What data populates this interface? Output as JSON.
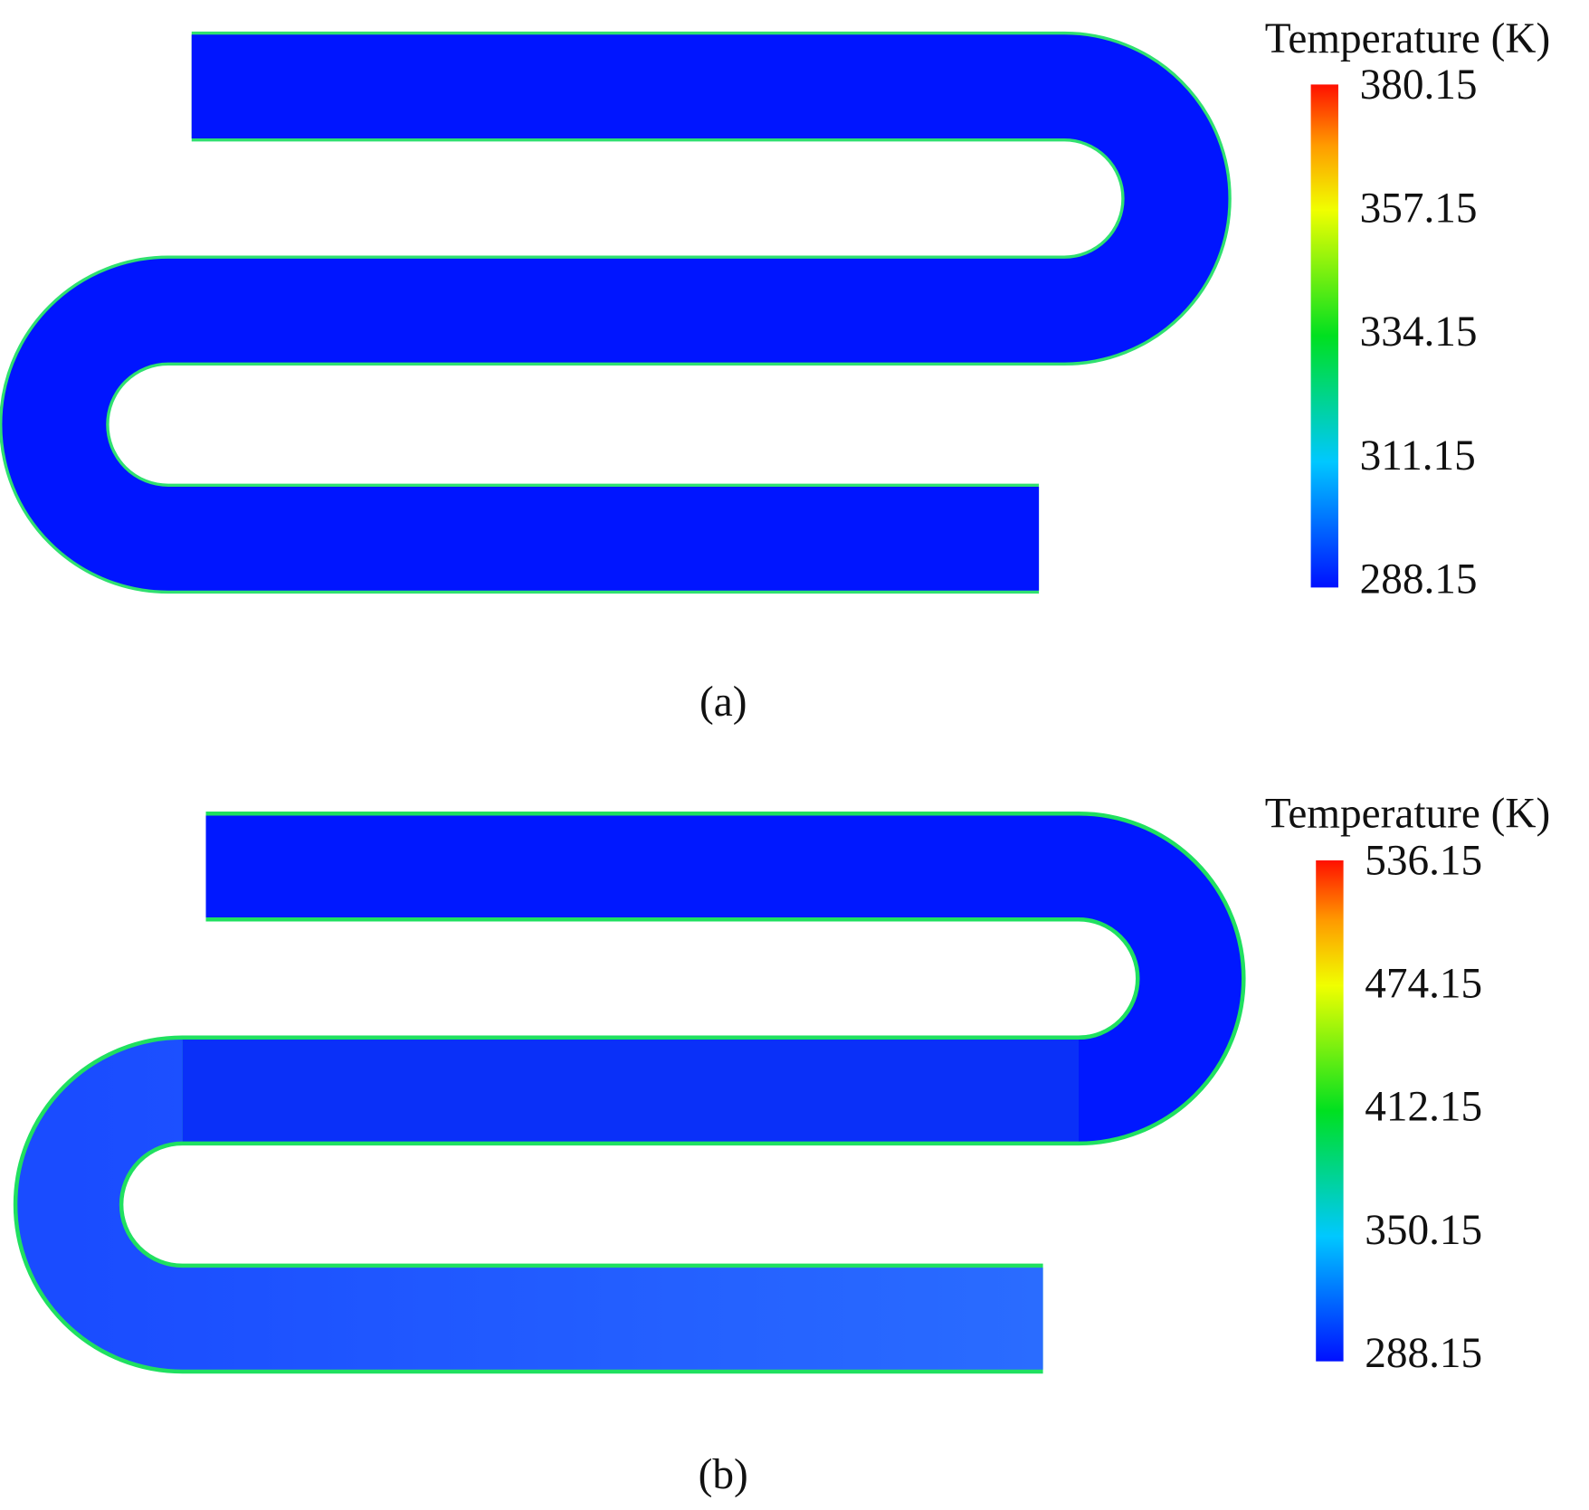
{
  "panels": [
    {
      "label": "(a)",
      "colorbar": {
        "title": "Temperature (K)",
        "clim": [
          288.15,
          380.15
        ],
        "cticks": [
          288.15,
          311.15,
          334.15,
          357.15,
          380.15
        ]
      }
    },
    {
      "label": "(b)",
      "colorbar": {
        "title": "Temperature (K)",
        "clim": [
          288.15,
          536.15
        ],
        "cticks": [
          288.15,
          350.15,
          412.15,
          474.15,
          536.15
        ]
      }
    }
  ]
}
